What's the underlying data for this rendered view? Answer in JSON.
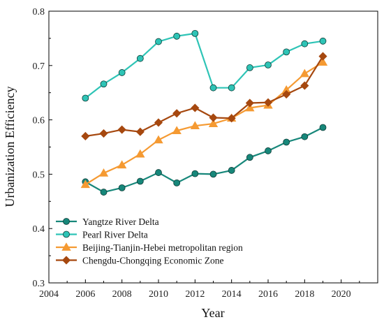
{
  "chart_data": {
    "type": "line",
    "title": "",
    "xlabel": "Year",
    "ylabel": "Urbanization Efficiency",
    "xlim": [
      2004,
      2022
    ],
    "ylim": [
      0.3,
      0.8
    ],
    "xticks": [
      2004,
      2006,
      2008,
      2010,
      2012,
      2014,
      2016,
      2018,
      2020
    ],
    "yticks": [
      0.3,
      0.4,
      0.5,
      0.6,
      0.7,
      0.8
    ],
    "xtick_labels": [
      "2004",
      "2006",
      "2008",
      "2010",
      "2012",
      "2014",
      "2016",
      "2018",
      "2020"
    ],
    "ytick_labels": [
      "0.3",
      "0.4",
      "0.5",
      "0.6",
      "0.7",
      "0.8"
    ],
    "grid": false,
    "legend_position": "bottom-left",
    "x": [
      2006,
      2007,
      2008,
      2009,
      2010,
      2011,
      2012,
      2013,
      2014,
      2015,
      2016,
      2017,
      2018,
      2019
    ],
    "series": [
      {
        "name": "Yangtze River Delta",
        "color": "#17877a",
        "marker": "circle",
        "values": [
          0.486,
          0.467,
          0.475,
          0.487,
          0.503,
          0.484,
          0.501,
          0.5,
          0.507,
          0.531,
          0.543,
          0.559,
          0.569,
          0.586
        ]
      },
      {
        "name": "Pearl River Delta",
        "color": "#2ec4b6",
        "marker": "circle",
        "values": [
          0.64,
          0.666,
          0.687,
          0.713,
          0.744,
          0.754,
          0.759,
          0.659,
          0.659,
          0.696,
          0.701,
          0.725,
          0.74,
          0.745
        ]
      },
      {
        "name": "Beijing-Tianjin-Hebei metropolitan region",
        "color": "#f59a32",
        "marker": "triangle",
        "values": [
          0.481,
          0.502,
          0.517,
          0.537,
          0.563,
          0.58,
          0.589,
          0.593,
          0.603,
          0.622,
          0.627,
          0.655,
          0.685,
          0.706
        ]
      },
      {
        "name": "Chengdu-Chongqing Economic Zone",
        "color": "#a6480f",
        "marker": "diamond",
        "values": [
          0.57,
          0.575,
          0.582,
          0.578,
          0.595,
          0.612,
          0.622,
          0.604,
          0.603,
          0.631,
          0.632,
          0.647,
          0.663,
          0.717
        ]
      }
    ]
  }
}
